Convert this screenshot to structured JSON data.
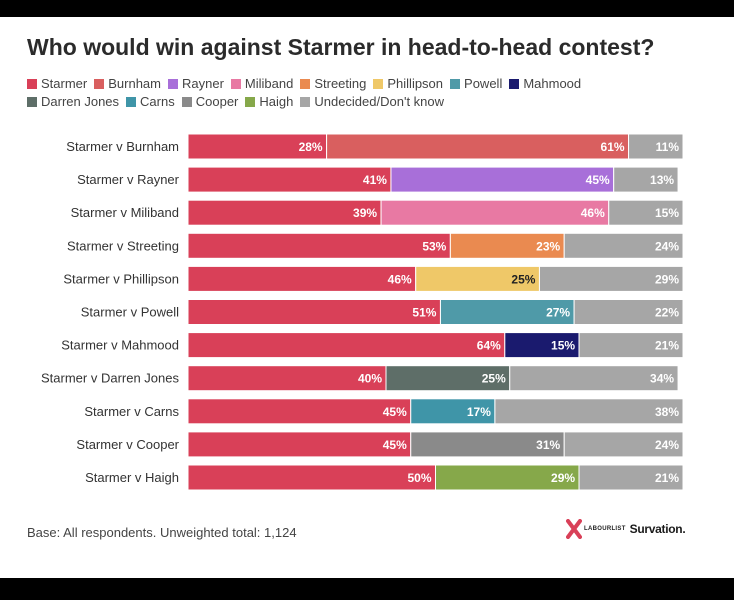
{
  "title": "Who would win against Starmer in head-to-head contest?",
  "footnote": "Base: All respondents. Unweighted total: 1,124",
  "logos": {
    "labourlist": "LABOURLIST",
    "survation": "Survation."
  },
  "legend_rows": [
    [
      {
        "name": "Starmer",
        "color": "#d94058"
      },
      {
        "name": "Burnham",
        "color": "#d95f5f"
      },
      {
        "name": "Rayner",
        "color": "#a86fd9"
      },
      {
        "name": "Miliband",
        "color": "#e879a3"
      },
      {
        "name": "Streeting",
        "color": "#ea8a50"
      },
      {
        "name": "Phillipson",
        "color": "#efc868"
      },
      {
        "name": "Powell",
        "color": "#4f9aa8"
      },
      {
        "name": "Mahmood",
        "color": "#1a1a6e"
      }
    ],
    [
      {
        "name": "Darren Jones",
        "color": "#5e6e68"
      },
      {
        "name": "Carns",
        "color": "#3f95a8"
      },
      {
        "name": "Cooper",
        "color": "#8a8a8a"
      },
      {
        "name": "Haigh",
        "color": "#86a84a"
      },
      {
        "name": "Undecided/Don't know",
        "color": "#a6a6a6"
      }
    ]
  ],
  "chart_data": {
    "type": "bar",
    "orientation": "horizontal",
    "stacked": true,
    "categories": [
      "Starmer v Burnham",
      "Starmer v Rayner",
      "Starmer v Miliband",
      "Starmer v Streeting",
      "Starmer v Phillipson",
      "Starmer v Powell",
      "Starmer v Mahmood",
      "Starmer v Darren Jones",
      "Starmer v Carns",
      "Starmer v Cooper",
      "Starmer v Haigh"
    ],
    "rows": [
      {
        "label": "Starmer v Burnham",
        "starmer": 28,
        "rival": 61,
        "rival_color": "#d95f5f",
        "rival_text": "#ffffff",
        "undecided": 11
      },
      {
        "label": "Starmer v Rayner",
        "starmer": 41,
        "rival": 45,
        "rival_color": "#a86fd9",
        "rival_text": "#ffffff",
        "undecided": 13
      },
      {
        "label": "Starmer v Miliband",
        "starmer": 39,
        "rival": 46,
        "rival_color": "#e879a3",
        "rival_text": "#ffffff",
        "undecided": 15
      },
      {
        "label": "Starmer v Streeting",
        "starmer": 53,
        "rival": 23,
        "rival_color": "#ea8a50",
        "rival_text": "#ffffff",
        "undecided": 24
      },
      {
        "label": "Starmer v Phillipson",
        "starmer": 46,
        "rival": 25,
        "rival_color": "#efc868",
        "rival_text": "#222222",
        "undecided": 29
      },
      {
        "label": "Starmer v Powell",
        "starmer": 51,
        "rival": 27,
        "rival_color": "#4f9aa8",
        "rival_text": "#ffffff",
        "undecided": 22
      },
      {
        "label": "Starmer v Mahmood",
        "starmer": 64,
        "rival": 15,
        "rival_color": "#1a1a6e",
        "rival_text": "#ffffff",
        "undecided": 21
      },
      {
        "label": "Starmer v Darren Jones",
        "starmer": 40,
        "rival": 25,
        "rival_color": "#5e6e68",
        "rival_text": "#ffffff",
        "undecided": 34
      },
      {
        "label": "Starmer v Carns",
        "starmer": 45,
        "rival": 17,
        "rival_color": "#3f95a8",
        "rival_text": "#ffffff",
        "undecided": 38
      },
      {
        "label": "Starmer v Cooper",
        "starmer": 45,
        "rival": 31,
        "rival_color": "#8a8a8a",
        "rival_text": "#ffffff",
        "undecided": 24
      },
      {
        "label": "Starmer v Haigh",
        "starmer": 50,
        "rival": 29,
        "rival_color": "#86a84a",
        "rival_text": "#ffffff",
        "undecided": 21
      }
    ],
    "value_suffix": "%",
    "starmer_color": "#d94058",
    "undecided_color": "#a6a6a6",
    "xlim": [
      0,
      100
    ],
    "grid": false,
    "legend_position": "top"
  }
}
